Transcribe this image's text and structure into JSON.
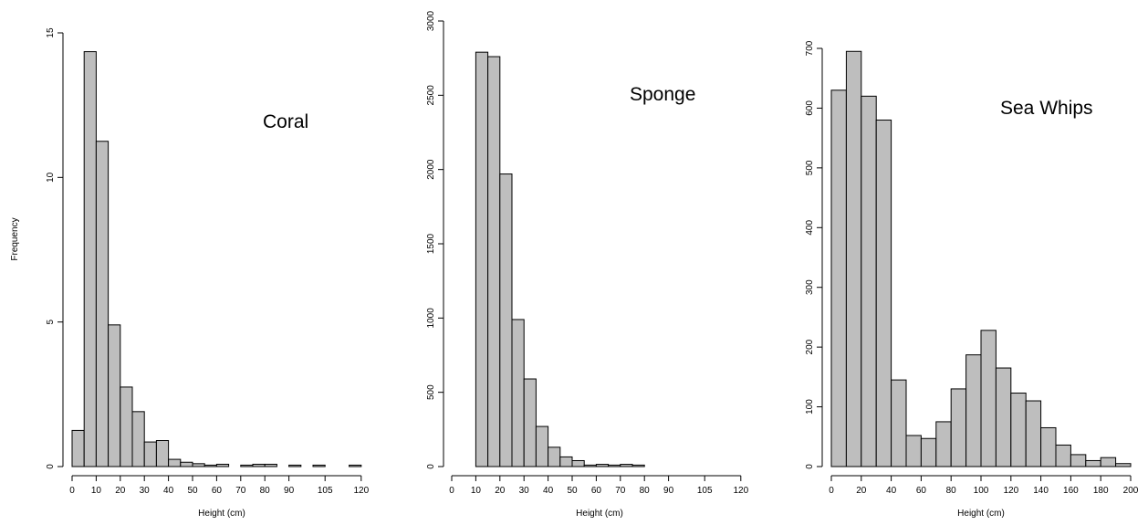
{
  "chart_data": [
    {
      "type": "bar",
      "title": "Coral",
      "xlabel": "Height (cm)",
      "ylabel": "Frequency",
      "xlim": [
        0,
        125
      ],
      "ylim": [
        0,
        15
      ],
      "bin_width": 5,
      "bins_start": [
        0,
        5,
        10,
        15,
        20,
        25,
        30,
        35,
        40,
        45,
        50,
        55,
        60,
        65,
        70,
        75,
        80,
        85,
        90,
        95,
        100,
        105,
        110,
        115,
        120
      ],
      "values": [
        1.25,
        14.35,
        11.25,
        4.9,
        2.75,
        1.9,
        0.85,
        0.9,
        0.25,
        0.15,
        0.1,
        0.05,
        0.08,
        0,
        0.05,
        0.08,
        0.08,
        0,
        0.05,
        0,
        0.05,
        0,
        0,
        0.05,
        0
      ],
      "xticks": [
        0,
        10,
        20,
        30,
        40,
        50,
        60,
        70,
        80,
        90,
        105,
        120
      ],
      "yticks": [
        0,
        5,
        10,
        15
      ],
      "bar_color": "#bebebe"
    },
    {
      "type": "bar",
      "title": "Sponge",
      "xlabel": "Height (cm)",
      "ylabel": "",
      "xlim": [
        0,
        125
      ],
      "ylim": [
        0,
        3000
      ],
      "bin_width": 5,
      "bins_start": [
        0,
        5,
        10,
        15,
        20,
        25,
        30,
        35,
        40,
        45,
        50,
        55,
        60,
        65,
        70,
        75,
        80,
        85,
        90,
        95,
        100,
        105,
        110,
        115,
        120
      ],
      "values": [
        0,
        0,
        2790,
        2760,
        1970,
        990,
        590,
        270,
        130,
        65,
        40,
        10,
        15,
        10,
        15,
        10,
        0,
        0,
        0,
        0,
        0,
        0,
        0,
        0,
        0
      ],
      "xticks": [
        0,
        10,
        20,
        30,
        40,
        50,
        60,
        70,
        80,
        90,
        105,
        120
      ],
      "yticks": [
        0,
        500,
        1000,
        1500,
        2000,
        2500,
        3000
      ],
      "bar_color": "#bebebe"
    },
    {
      "type": "bar",
      "title": "Sea Whips",
      "xlabel": "Height (cm)",
      "ylabel": "",
      "xlim": [
        0,
        200
      ],
      "ylim": [
        0,
        700
      ],
      "bin_width": 10,
      "bins_start": [
        0,
        10,
        20,
        30,
        40,
        50,
        60,
        70,
        80,
        90,
        100,
        110,
        120,
        130,
        140,
        150,
        160,
        170,
        180,
        190
      ],
      "values": [
        630,
        695,
        620,
        580,
        145,
        52,
        47,
        75,
        130,
        187,
        228,
        165,
        123,
        110,
        65,
        36,
        20,
        10,
        15,
        5
      ],
      "xticks": [
        0,
        20,
        40,
        60,
        80,
        100,
        120,
        140,
        160,
        180,
        200
      ],
      "yticks": [
        0,
        100,
        200,
        300,
        400,
        500,
        600,
        700
      ],
      "bar_color": "#bebebe"
    }
  ]
}
